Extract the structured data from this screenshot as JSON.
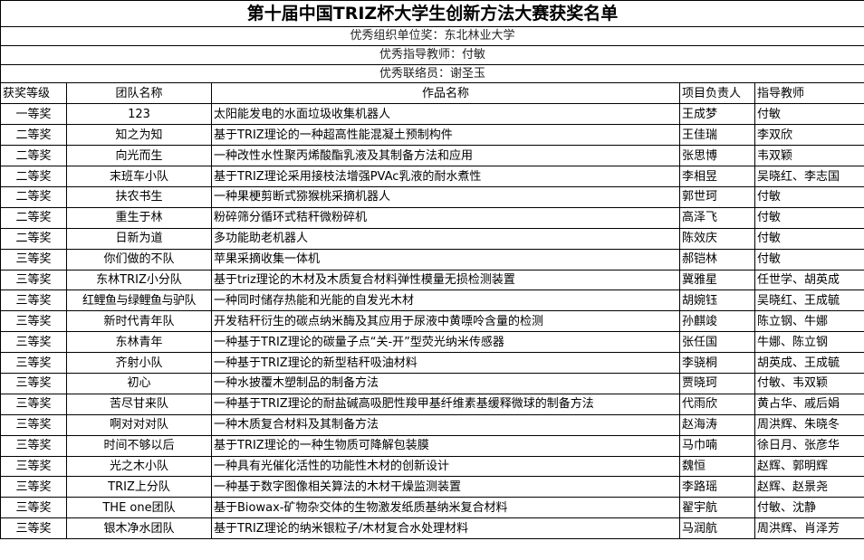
{
  "title": "第十届中国TRIZ杯大学生创新方法大赛获奖名单",
  "awards": {
    "org": "优秀组织单位奖：东北林业大学",
    "teacher": "优秀指导教师：付敏",
    "liaison": "优秀联络员：谢圣玉"
  },
  "columns": [
    "获奖等级",
    "团队名称",
    "作品名称",
    "项目负责人",
    "指导教师"
  ],
  "rows": [
    [
      "一等奖",
      "123",
      "太阳能发电的水面垃圾收集机器人",
      "王成梦",
      "付敏"
    ],
    [
      "二等奖",
      "知之为知",
      "基于TRIZ理论的一种超高性能混凝土预制构件",
      "王佳瑞",
      "李双欣"
    ],
    [
      "二等奖",
      "向光而生",
      "一种改性水性聚丙烯酸酯乳液及其制备方法和应用",
      "张思博",
      "韦双颖"
    ],
    [
      "二等奖",
      "末班车小队",
      "基于TRIZ理论采用接枝法增强PVAc乳液的耐水煮性",
      "李相昱",
      "吴晓红、李志国"
    ],
    [
      "二等奖",
      "扶农书生",
      "一种果梗剪断式猕猴桃采摘机器人",
      "郭世珂",
      "付敏"
    ],
    [
      "二等奖",
      "重生于林",
      "粉碎筛分循环式秸秆微粉碎机",
      "高泽飞",
      "付敏"
    ],
    [
      "二等奖",
      "日新为道",
      "多功能助老机器人",
      "陈效庆",
      "付敏"
    ],
    [
      "三等奖",
      "你们做的不队",
      "苹果采摘收集一体机",
      "郝铠林",
      "付敏"
    ],
    [
      "三等奖",
      "东林TRIZ小分队",
      "基于triz理论的木材及木质复合材料弹性模量无损检测装置",
      "冀雅星",
      "任世学、胡英成"
    ],
    [
      "三等奖",
      "红鲤鱼与绿鲤鱼与驴队",
      "一种同时储存热能和光能的自发光木材",
      "胡婉钰",
      "吴晓红、王成毓"
    ],
    [
      "三等奖",
      "新时代青年队",
      "开发秸秆衍生的碳点纳米酶及其应用于尿液中黄嘌呤含量的检测",
      "孙麒竣",
      "陈立钢、牛娜"
    ],
    [
      "三等奖",
      "东林青年",
      "一种基于TRIZ理论的碳量子点“关-开”型荧光纳米传感器",
      "张任国",
      "牛娜、陈立钢"
    ],
    [
      "三等奖",
      "齐射小队",
      "一种基于TRIZ理论的新型秸秆吸油材料",
      "李骁桐",
      "胡英成、王成毓"
    ],
    [
      "三等奖",
      "初心",
      "一种水披覆木塑制品的制备方法",
      "贾晓珂",
      "付敏、韦双颖"
    ],
    [
      "三等奖",
      "苦尽甘来队",
      "一种基于TRIZ理论的耐盐碱高吸肥性羧甲基纤维素基缓释微球的制备方法",
      "代雨欣",
      "黄占华、戚后娟"
    ],
    [
      "三等奖",
      "啊对对对队",
      "一种木质复合材料及其制备方法",
      "赵海涛",
      "周洪辉、朱晓冬"
    ],
    [
      "三等奖",
      "时间不够以后",
      "基于TRIZ理论的一种生物质可降解包装膜",
      "马巾喃",
      "徐日月、张彦华"
    ],
    [
      "三等奖",
      "光之木小队",
      "一种具有光催化活性的功能性木材的创新设计",
      "魏恒",
      "赵辉、郭明辉"
    ],
    [
      "三等奖",
      "TRIZ上分队",
      "一种基于数字图像相关算法的木材干燥监测装置",
      "李路瑶",
      "赵辉、赵景尧"
    ],
    [
      "三等奖",
      "THE one团队",
      "基于Biowax-矿物杂交体的生物激发纸质基纳米复合材料",
      "翟宇航",
      "付敏、沈静"
    ],
    [
      "三等奖",
      "银木净水团队",
      "基于TRIZ理论的纳米银粒子/木材复合水处理材料",
      "马润航",
      "周洪辉、肖泽芳"
    ]
  ]
}
